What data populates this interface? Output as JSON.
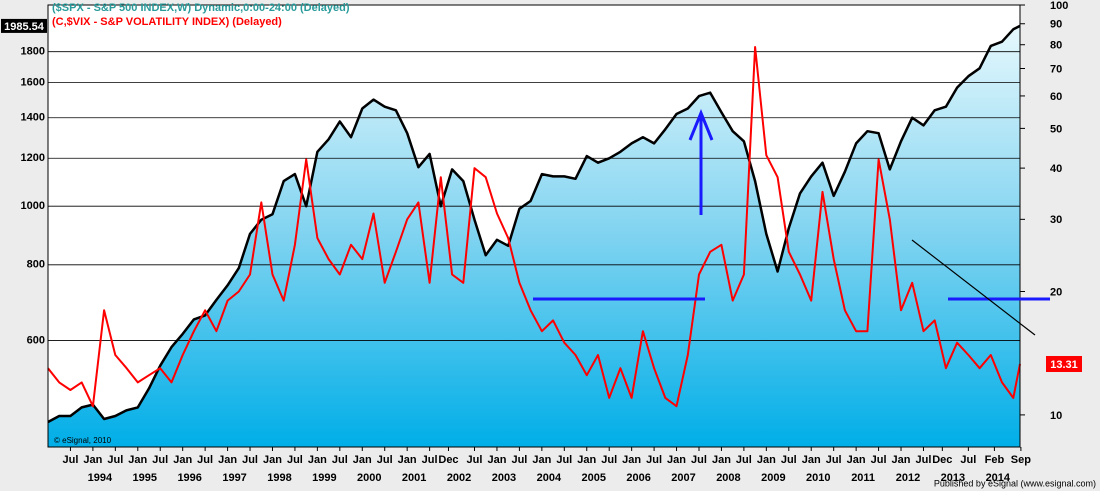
{
  "chart_data": {
    "type": "line",
    "credit": "© eSignal, 2010",
    "source": "Published by eSignal (www.esignal.com)",
    "x": [
      1993.0,
      1993.25,
      1993.5,
      1993.75,
      1994.0,
      1994.25,
      1994.5,
      1994.75,
      1995.0,
      1995.25,
      1995.5,
      1995.75,
      1996.0,
      1996.25,
      1996.5,
      1996.75,
      1997.0,
      1997.25,
      1997.5,
      1997.75,
      1998.0,
      1998.25,
      1998.5,
      1998.75,
      1999.0,
      1999.25,
      1999.5,
      1999.75,
      2000.0,
      2000.25,
      2000.5,
      2000.75,
      2001.0,
      2001.25,
      2001.5,
      2001.75,
      2002.0,
      2002.25,
      2002.5,
      2002.75,
      2003.0,
      2003.25,
      2003.5,
      2003.75,
      2004.0,
      2004.25,
      2004.5,
      2004.75,
      2005.0,
      2005.25,
      2005.5,
      2005.75,
      2006.0,
      2006.25,
      2006.5,
      2006.75,
      2007.0,
      2007.25,
      2007.5,
      2007.75,
      2008.0,
      2008.25,
      2008.5,
      2008.75,
      2009.0,
      2009.25,
      2009.5,
      2009.75,
      2010.0,
      2010.25,
      2010.5,
      2010.75,
      2011.0,
      2011.25,
      2011.5,
      2011.75,
      2012.0,
      2012.25,
      2012.5,
      2012.75,
      2013.0,
      2013.25,
      2013.5,
      2013.75,
      2014.0,
      2014.25,
      2014.5,
      2014.65
    ],
    "series": [
      {
        "name": "($SPX - S&P 500 INDEX,W) Dynamic,0:00-24:00 (Delayed)",
        "color": "#000000",
        "name_color": "#2a9a9a",
        "values": [
          440,
          450,
          450,
          465,
          470,
          445,
          450,
          460,
          465,
          500,
          545,
          585,
          615,
          650,
          660,
          700,
          740,
          790,
          900,
          950,
          970,
          1100,
          1130,
          1000,
          1230,
          1290,
          1380,
          1300,
          1450,
          1500,
          1460,
          1440,
          1320,
          1160,
          1220,
          1000,
          1150,
          1100,
          950,
          830,
          880,
          860,
          990,
          1020,
          1130,
          1120,
          1120,
          1110,
          1210,
          1180,
          1200,
          1230,
          1270,
          1300,
          1270,
          1340,
          1420,
          1450,
          1520,
          1540,
          1430,
          1330,
          1280,
          1100,
          900,
          780,
          920,
          1050,
          1120,
          1180,
          1040,
          1140,
          1270,
          1330,
          1320,
          1150,
          1280,
          1400,
          1360,
          1440,
          1460,
          1570,
          1640,
          1690,
          1840,
          1870,
          1960,
          1985.54
        ]
      },
      {
        "name": "(C,$VIX - S&P VOLATILITY INDEX)  (Delayed)",
        "color": "#ff0000",
        "axis": "y2",
        "name_color": "#ff0000",
        "values": [
          13,
          12,
          11.5,
          12,
          10.5,
          18,
          14,
          13,
          12,
          12.5,
          13,
          12,
          14,
          16,
          18,
          16,
          19,
          20,
          22,
          33,
          22,
          19,
          26,
          42,
          27,
          24,
          22,
          26,
          24,
          31,
          21,
          25,
          30,
          33,
          21,
          38,
          22,
          21,
          40,
          38,
          31,
          27,
          21,
          18,
          16,
          17,
          15,
          14,
          12.5,
          14,
          11,
          13,
          11,
          16,
          13,
          11,
          10.5,
          14,
          22,
          25,
          26,
          19,
          22,
          79,
          43,
          38,
          25,
          22,
          19,
          35,
          24,
          18,
          16,
          16,
          42,
          30,
          18,
          21,
          16,
          17,
          13,
          15,
          14,
          13,
          14,
          12,
          11,
          13.31
        ]
      }
    ],
    "xlim": [
      1993.0,
      2014.65
    ],
    "xticks": [
      {
        "value": 1993.5,
        "label": "Jul"
      },
      {
        "value": 1994.0,
        "label": "Jan"
      },
      {
        "value": 1994.5,
        "label": "Jul"
      },
      {
        "value": 1995.0,
        "label": "Jan"
      },
      {
        "value": 1995.5,
        "label": "Jul"
      },
      {
        "value": 1996.0,
        "label": "Jan"
      },
      {
        "value": 1996.5,
        "label": "Jul"
      },
      {
        "value": 1997.0,
        "label": "Jan"
      },
      {
        "value": 1997.5,
        "label": "Jul"
      },
      {
        "value": 1998.0,
        "label": "Jan"
      },
      {
        "value": 1998.5,
        "label": "Jul"
      },
      {
        "value": 1999.0,
        "label": "Jan"
      },
      {
        "value": 1999.5,
        "label": "Jul"
      },
      {
        "value": 2000.0,
        "label": "Jan"
      },
      {
        "value": 2000.5,
        "label": "Jul"
      },
      {
        "value": 2001.0,
        "label": "Jan"
      },
      {
        "value": 2001.5,
        "label": "Jul"
      },
      {
        "value": 2001.92,
        "label": "Dec"
      },
      {
        "value": 2002.5,
        "label": "Jul"
      },
      {
        "value": 2003.0,
        "label": "Jan"
      },
      {
        "value": 2003.5,
        "label": "Jul"
      },
      {
        "value": 2004.0,
        "label": "Jan"
      },
      {
        "value": 2004.5,
        "label": "Jul"
      },
      {
        "value": 2005.0,
        "label": "Jan"
      },
      {
        "value": 2005.5,
        "label": "Jul"
      },
      {
        "value": 2006.0,
        "label": "Jan"
      },
      {
        "value": 2006.5,
        "label": "Jul"
      },
      {
        "value": 2007.0,
        "label": "Jan"
      },
      {
        "value": 2007.5,
        "label": "Jul"
      },
      {
        "value": 2008.0,
        "label": "Jan"
      },
      {
        "value": 2008.5,
        "label": "Jul"
      },
      {
        "value": 2009.0,
        "label": "Jan"
      },
      {
        "value": 2009.5,
        "label": "Jul"
      },
      {
        "value": 2010.0,
        "label": "Jan"
      },
      {
        "value": 2010.5,
        "label": "Jul"
      },
      {
        "value": 2011.0,
        "label": "Jan"
      },
      {
        "value": 2011.5,
        "label": "Jul"
      },
      {
        "value": 2012.0,
        "label": "Jan"
      },
      {
        "value": 2012.5,
        "label": "Jul"
      },
      {
        "value": 2012.92,
        "label": "Dec"
      },
      {
        "value": 2013.5,
        "label": "Jul"
      },
      {
        "value": 2014.08,
        "label": "Feb"
      },
      {
        "value": 2014.67,
        "label": "Sep"
      }
    ],
    "year_ticks": [
      1994,
      1995,
      1996,
      1997,
      1998,
      1999,
      2000,
      2001,
      2002,
      2003,
      2004,
      2005,
      2006,
      2007,
      2008,
      2009,
      2010,
      2011,
      2012,
      2013,
      2014
    ],
    "ylim": [
      400,
      2150
    ],
    "yticks": [
      600,
      800,
      1000,
      1200,
      1400,
      1600,
      1800
    ],
    "y_scale": "log",
    "y2lim": [
      8.35,
      100
    ],
    "y2ticks": [
      10,
      20,
      30,
      40,
      50,
      60,
      70,
      80,
      90,
      100
    ],
    "y2_scale": "log",
    "grid": true
  }
}
